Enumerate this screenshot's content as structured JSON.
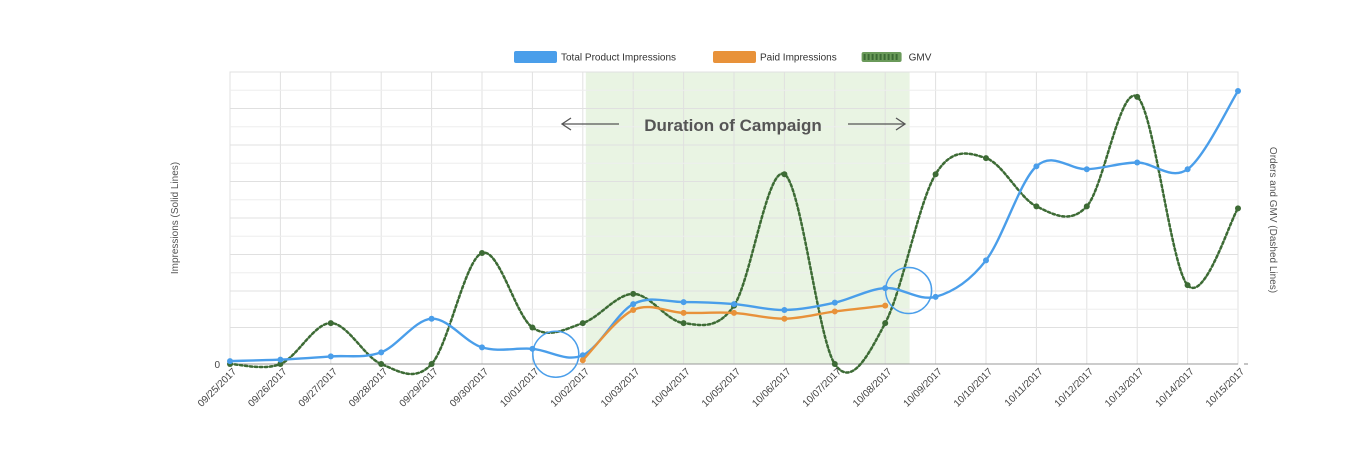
{
  "chart_data": {
    "type": "line",
    "title": "",
    "ylabel": "Impressions (Solid Lines)",
    "ylabel_right": "Orders and GMV (Dashed Lines)",
    "xlabel": "",
    "x": [
      "09/25/2017",
      "09/26/2017",
      "09/27/2017",
      "09/28/2017",
      "09/29/2017",
      "09/30/2017",
      "10/01/2017",
      "10/02/2017",
      "10/03/2017",
      "10/04/2017",
      "10/05/2017",
      "10/06/2017",
      "10/07/2017",
      "10/08/2017",
      "10/09/2017",
      "10/10/2017",
      "10/11/2017",
      "10/12/2017",
      "10/13/2017",
      "10/14/2017",
      "10/15/2017"
    ],
    "y_left_ticks": [
      "0"
    ],
    "y_left_range": [
      0,
      100
    ],
    "y_right_range": [
      0,
      100
    ],
    "grid": true,
    "legend_position": "top-center",
    "series": [
      {
        "name": "Total Product Impressions",
        "color": "#4a9eea",
        "style": "solid",
        "axis": "left",
        "values": [
          1,
          1.5,
          2.6,
          4,
          15.5,
          5.7,
          5.2,
          3,
          20.5,
          21.2,
          20.5,
          18.5,
          21,
          26,
          23,
          35.5,
          67.7,
          66.7,
          69,
          66.7,
          93.5
        ]
      },
      {
        "name": "Paid Impressions",
        "color": "#e8923a",
        "style": "solid",
        "axis": "left",
        "values": [
          null,
          null,
          null,
          null,
          null,
          null,
          null,
          1.3,
          18.5,
          17.5,
          17.5,
          15.5,
          18,
          20,
          null,
          null,
          null,
          null,
          null,
          null,
          null
        ]
      },
      {
        "name": "GMV",
        "color": "#3d6b35",
        "style": "dashed",
        "axis": "right",
        "values": [
          0,
          0,
          14,
          0,
          0,
          38,
          12.5,
          14,
          24,
          14,
          20,
          65,
          0,
          14,
          65,
          70.5,
          54,
          54,
          91.5,
          27,
          53.3
        ]
      }
    ],
    "annotation": {
      "text": "Duration of Campaign",
      "start": "10/02/2017",
      "end": "10/09/2017"
    },
    "highlights": [
      "10/02/2017",
      "10/09/2017"
    ]
  },
  "colors": {
    "campaign_band": "#e9f4e3",
    "grid": "#e0e0e0",
    "highlight_circle": "#4a9eea",
    "arrow": "#555555"
  }
}
